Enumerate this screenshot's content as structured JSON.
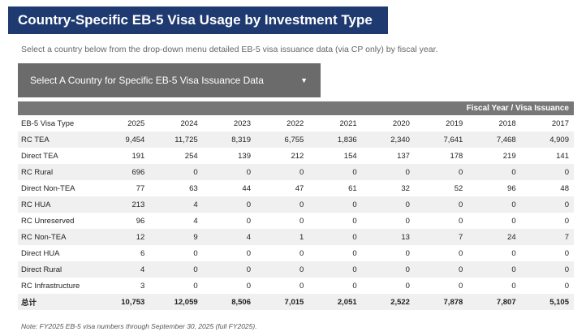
{
  "header": {
    "title": "Country-Specific EB-5 Visa Usage by Investment Type",
    "subtitle": "Select a country below from the drop-down menu detailed EB-5 visa issuance data (via CP only) by fiscal year."
  },
  "dropdown": {
    "label": "Select A Country for Specific EB-5 Visa Issuance Data"
  },
  "table": {
    "caption": "Fiscal Year / Visa Issuance",
    "columns": [
      "EB-5 Visa Type",
      "2025",
      "2024",
      "2023",
      "2022",
      "2021",
      "2020",
      "2019",
      "2018",
      "2017"
    ],
    "rows": [
      [
        "RC TEA",
        "9,454",
        "11,725",
        "8,319",
        "6,755",
        "1,836",
        "2,340",
        "7,641",
        "7,468",
        "4,909"
      ],
      [
        "Direct TEA",
        "191",
        "254",
        "139",
        "212",
        "154",
        "137",
        "178",
        "219",
        "141"
      ],
      [
        "RC Rural",
        "696",
        "0",
        "0",
        "0",
        "0",
        "0",
        "0",
        "0",
        "0"
      ],
      [
        "Direct Non-TEA",
        "77",
        "63",
        "44",
        "47",
        "61",
        "32",
        "52",
        "96",
        "48"
      ],
      [
        "RC HUA",
        "213",
        "4",
        "0",
        "0",
        "0",
        "0",
        "0",
        "0",
        "0"
      ],
      [
        "RC Unreserved",
        "96",
        "4",
        "0",
        "0",
        "0",
        "0",
        "0",
        "0",
        "0"
      ],
      [
        "RC Non-TEA",
        "12",
        "9",
        "4",
        "1",
        "0",
        "13",
        "7",
        "24",
        "7"
      ],
      [
        "Direct HUA",
        "6",
        "0",
        "0",
        "0",
        "0",
        "0",
        "0",
        "0",
        "0"
      ],
      [
        "Direct Rural",
        "4",
        "0",
        "0",
        "0",
        "0",
        "0",
        "0",
        "0",
        "0"
      ],
      [
        "RC Infrastructure",
        "3",
        "0",
        "0",
        "0",
        "0",
        "0",
        "0",
        "0",
        "0"
      ]
    ],
    "total": [
      "总计",
      "10,753",
      "12,059",
      "8,506",
      "7,015",
      "2,051",
      "2,522",
      "7,878",
      "7,807",
      "5,105"
    ]
  },
  "note": "Note: FY2025 EB-5 visa numbers through September 30, 2025 (full FY2025)."
}
